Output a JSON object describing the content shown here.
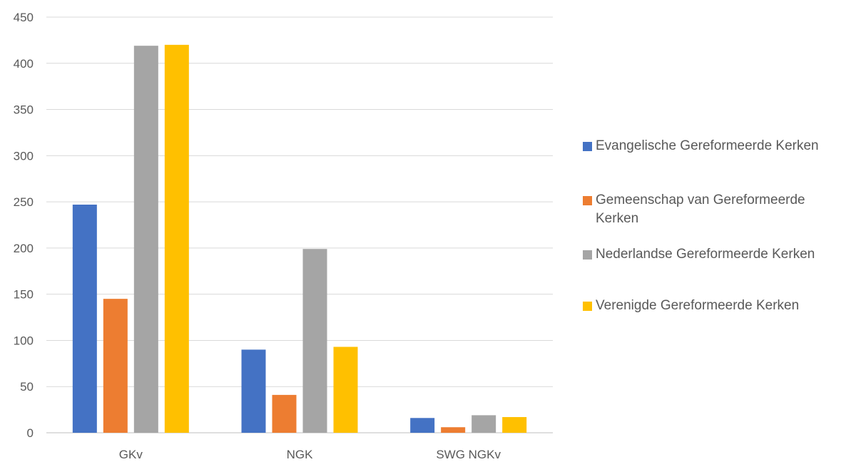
{
  "chart_data": {
    "type": "bar",
    "categories": [
      "GKv",
      "NGK",
      "SWG NGKv"
    ],
    "series": [
      {
        "name": "Evangelische Gereformeerde Kerken",
        "color": "#4472C4",
        "values": [
          247,
          90,
          16
        ]
      },
      {
        "name": "Gemeenschap van Gereformeerde Kerken",
        "color": "#ED7D31",
        "values": [
          145,
          41,
          6
        ]
      },
      {
        "name": "Nederlandse Gereformeerde Kerken",
        "color": "#A5A5A5",
        "values": [
          419,
          199,
          19
        ]
      },
      {
        "name": "Verenigde Gereformeerde Kerken",
        "color": "#FFC000",
        "values": [
          420,
          93,
          17
        ]
      }
    ],
    "ylim": [
      0,
      450
    ],
    "yticks": [
      0,
      50,
      100,
      150,
      200,
      250,
      300,
      350,
      400,
      450
    ],
    "grid": true,
    "legend_position": "right",
    "title": "",
    "xlabel": "",
    "ylabel": ""
  }
}
